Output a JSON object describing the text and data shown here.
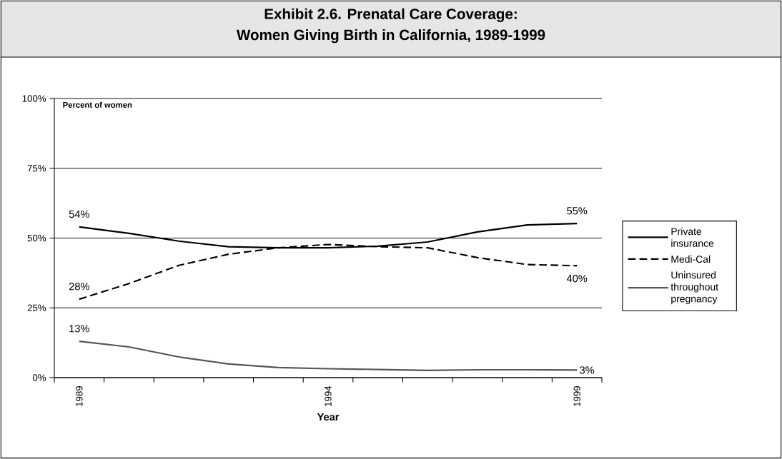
{
  "chart_data": {
    "type": "line",
    "title": "Exhibit 2.6.  Prenatal Care Coverage:",
    "subtitle": "Women Giving Birth in California, 1989-1999",
    "xlabel": "Year",
    "ylabel": "Percent of women",
    "categories": [
      "1989",
      null,
      null,
      null,
      null,
      "1994",
      null,
      null,
      null,
      null,
      "1999"
    ],
    "series": [
      {
        "name": "Private insurance",
        "color": "#000000",
        "line_style": "solid",
        "values": [
          54,
          51.7,
          48.9,
          46.9,
          46.5,
          46.5,
          47.1,
          48.6,
          52.2,
          54.7,
          55.2
        ],
        "value_labels": [
          "54%",
          null,
          null,
          null,
          null,
          null,
          null,
          null,
          null,
          null,
          "55%"
        ]
      },
      {
        "name": "Medi-Cal",
        "color": "#000000",
        "line_style": "dashed",
        "values": [
          28.1,
          33.7,
          40.2,
          44.2,
          46.5,
          47.7,
          46.9,
          46.5,
          43.0,
          40.5,
          40.1
        ],
        "value_labels": [
          "28%",
          null,
          null,
          null,
          null,
          null,
          null,
          null,
          null,
          null,
          "40%"
        ]
      },
      {
        "name": "Uninsured throughout pregnancy",
        "color": "#555555",
        "line_style": "solid",
        "values": [
          13.0,
          11.0,
          7.4,
          4.9,
          3.6,
          3.2,
          2.9,
          2.6,
          2.8,
          2.8,
          2.7
        ],
        "value_labels": [
          "13%",
          null,
          null,
          null,
          null,
          null,
          null,
          null,
          null,
          null,
          "3%"
        ]
      }
    ],
    "ylim": [
      0,
      100
    ],
    "yticks": [
      {
        "value": 0,
        "label": "0%"
      },
      {
        "value": 25,
        "label": "25%"
      },
      {
        "value": 50,
        "label": "50%"
      },
      {
        "value": 75,
        "label": "75%"
      },
      {
        "value": 100,
        "label": "100%"
      }
    ],
    "grid": "y",
    "legend": "right",
    "marker": "none"
  }
}
